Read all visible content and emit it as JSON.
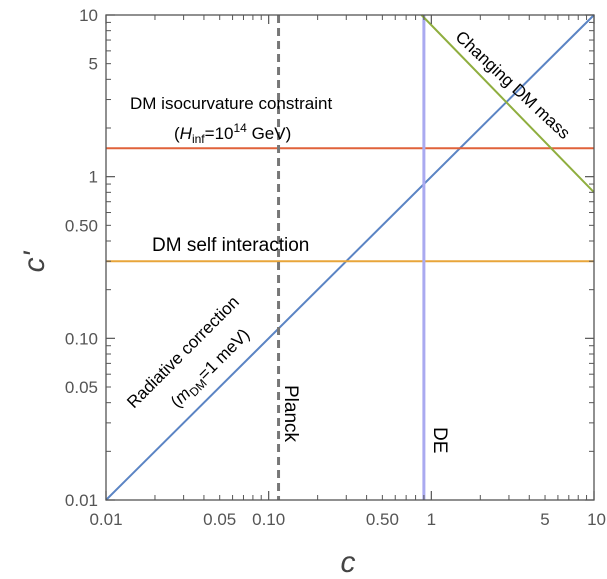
{
  "chart_data": {
    "type": "line",
    "xscale": "log",
    "yscale": "log",
    "xlim": [
      0.01,
      10
    ],
    "ylim": [
      0.01,
      10
    ],
    "xlabel": "c",
    "ylabel": "c'",
    "xticks": [
      {
        "value": 0.01,
        "label": "0.01"
      },
      {
        "value": 0.05,
        "label": "0.05"
      },
      {
        "value": 0.1,
        "label": "0.10"
      },
      {
        "value": 0.5,
        "label": "0.50"
      },
      {
        "value": 1,
        "label": "1"
      },
      {
        "value": 5,
        "label": "5"
      },
      {
        "value": 10,
        "label": "10"
      }
    ],
    "yticks": [
      {
        "value": 0.01,
        "label": "0.01"
      },
      {
        "value": 0.05,
        "label": "0.05"
      },
      {
        "value": 0.1,
        "label": "0.10"
      },
      {
        "value": 0.5,
        "label": "0.50"
      },
      {
        "value": 1,
        "label": "1"
      },
      {
        "value": 5,
        "label": "5"
      },
      {
        "value": 10,
        "label": "10"
      }
    ],
    "series": [
      {
        "kind": "diagonal",
        "color": "#5b84c4",
        "points": [
          [
            0.01,
            0.01
          ],
          [
            10,
            10
          ]
        ]
      },
      {
        "kind": "hline",
        "color": "#e0623a",
        "y": 1.5
      },
      {
        "kind": "hline",
        "color": "#e8a53a",
        "y": 0.3
      },
      {
        "kind": "vline",
        "color": "#aaaaf0",
        "x": 0.9
      },
      {
        "kind": "vline-dashed",
        "color": "#777777",
        "x": 0.115
      },
      {
        "kind": "diagonal",
        "color": "#8fae3f",
        "points": [
          [
            0.87,
            10
          ],
          [
            10,
            0.8
          ]
        ]
      }
    ],
    "annotations": {
      "isocurvature_line1": "DM isocurvature constraint",
      "iso_paren_open": "(",
      "iso_H": "H",
      "iso_H_sub": "inf",
      "iso_eq": "=10",
      "iso_exp": "14",
      "iso_unit": " GeV)",
      "self_interaction": "DM self interaction",
      "changing_mass": "Changing DM mass",
      "radiative_line1": "Radiative correction",
      "rad_paren_open": "(",
      "rad_m": "m",
      "rad_m_sub": "DM",
      "rad_val": "=1 meV)",
      "planck": "Planck",
      "de": "DE"
    }
  }
}
